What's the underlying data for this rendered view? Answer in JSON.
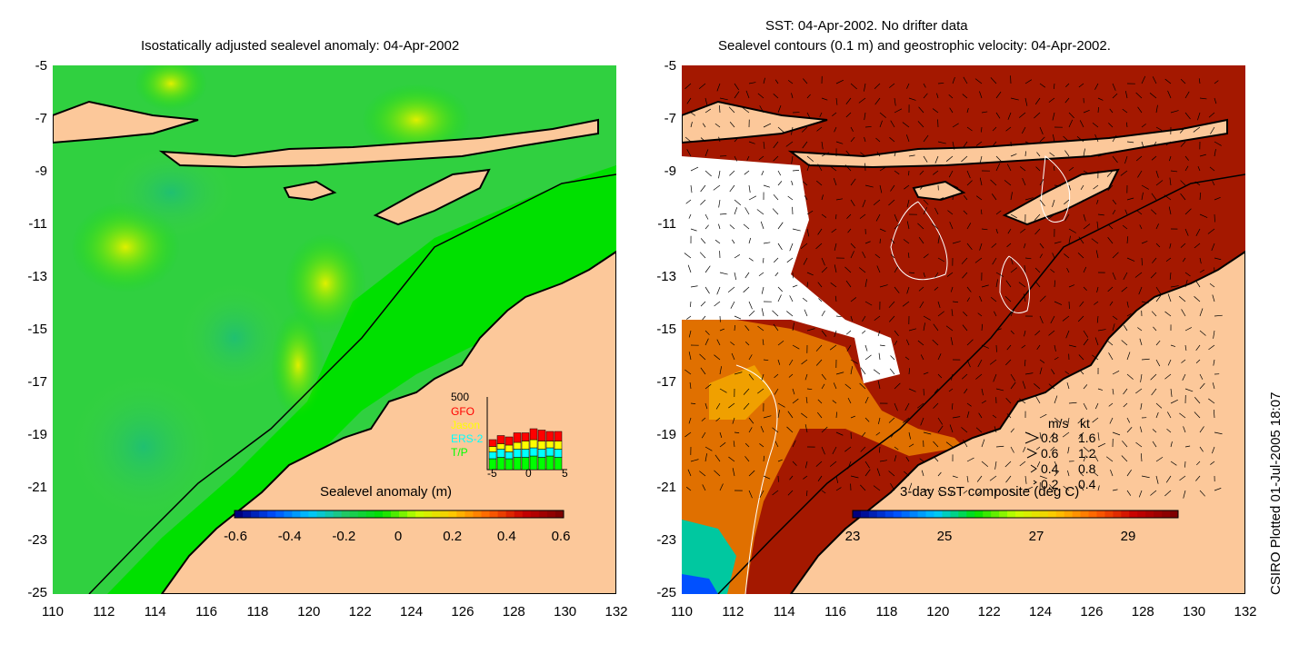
{
  "left_panel": {
    "title": "Isostatically adjusted sealevel anomaly: 04-Apr-2002",
    "colorbar": {
      "label": "Sealevel anomaly (m)",
      "ticks": [
        "-0.6",
        "-0.4",
        "-0.2",
        "0",
        "0.2",
        "0.4",
        "0.6"
      ],
      "colors": [
        "#00007f",
        "#0050ff",
        "#00c8ff",
        "#20c864",
        "#00e000",
        "#c8ff00",
        "#ffc800",
        "#ff6400",
        "#c80000",
        "#7f0000"
      ]
    },
    "inset": {
      "scale_label": "500",
      "satellites": [
        {
          "name": "GFO",
          "color": "#ff0000"
        },
        {
          "name": "Jason",
          "color": "#ffff00"
        },
        {
          "name": "ERS-2",
          "color": "#00ffff"
        },
        {
          "name": "T/P",
          "color": "#00ff00"
        }
      ],
      "x_ticks": [
        "-5",
        "0",
        "5"
      ],
      "bars": [
        {
          "tp": 0.4,
          "ers": 0.25,
          "jason": 0.2,
          "gfo": 0.25
        },
        {
          "tp": 0.45,
          "ers": 0.3,
          "jason": 0.2,
          "gfo": 0.3
        },
        {
          "tp": 0.4,
          "ers": 0.25,
          "jason": 0.25,
          "gfo": 0.3
        },
        {
          "tp": 0.45,
          "ers": 0.3,
          "jason": 0.25,
          "gfo": 0.35
        },
        {
          "tp": 0.45,
          "ers": 0.3,
          "jason": 0.3,
          "gfo": 0.3
        },
        {
          "tp": 0.5,
          "ers": 0.3,
          "jason": 0.3,
          "gfo": 0.4
        },
        {
          "tp": 0.45,
          "ers": 0.3,
          "jason": 0.3,
          "gfo": 0.4
        },
        {
          "tp": 0.5,
          "ers": 0.3,
          "jason": 0.25,
          "gfo": 0.35
        },
        {
          "tp": 0.45,
          "ers": 0.3,
          "jason": 0.3,
          "gfo": 0.35
        }
      ]
    }
  },
  "right_panel": {
    "title_line1": "SST: 04-Apr-2002. No drifter data",
    "title_line2": "Sealevel contours (0.1 m) and geostrophic velocity: 04-Apr-2002.",
    "colorbar": {
      "label": "3-day SST composite (deg C)",
      "ticks": [
        "23",
        "25",
        "27",
        "29"
      ],
      "colors": [
        "#00007f",
        "#0050ff",
        "#00c8ff",
        "#00e000",
        "#c8ff00",
        "#ffc800",
        "#ff6400",
        "#c80000",
        "#7f0000"
      ]
    },
    "velocity_legend": {
      "header_ms": "m/s",
      "header_kt": "kt",
      "rows": [
        {
          "ms": "0.8",
          "kt": "1.6"
        },
        {
          "ms": "0.6",
          "kt": "1.2"
        },
        {
          "ms": "0.4",
          "kt": "0.8"
        },
        {
          "ms": "0.2",
          "kt": "0.4"
        }
      ]
    }
  },
  "axes": {
    "y_ticks": [
      "-5",
      "-7",
      "-9",
      "-11",
      "-13",
      "-15",
      "-17",
      "-19",
      "-21",
      "-23",
      "-25"
    ],
    "x_ticks": [
      "110",
      "112",
      "114",
      "116",
      "118",
      "120",
      "122",
      "124",
      "126",
      "128",
      "130",
      "132"
    ]
  },
  "colors": {
    "land": "#fcc89a",
    "ocean_green": "#00e000",
    "sst_dark": "#a00000",
    "coast": "#000000"
  },
  "stamp": "CSIRO Plotted 01-Jul-2005 18:07"
}
